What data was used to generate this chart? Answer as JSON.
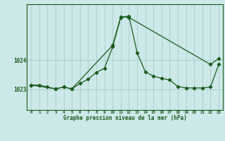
{
  "title": "Graphe pression niveau de la mer (hPa)",
  "background_color": "#cce8e8",
  "grid_color": "#aacccc",
  "line_color": "#1a5c1a",
  "x_labels": [
    "0",
    "1",
    "2",
    "3",
    "4",
    "5",
    "6",
    "7",
    "8",
    "9",
    "10",
    "11",
    "12",
    "13",
    "14",
    "15",
    "16",
    "17",
    "18",
    "19",
    "20",
    "21",
    "22",
    "23"
  ],
  "y_ticks": [
    1023,
    1024
  ],
  "ylim": [
    1022.3,
    1025.9
  ],
  "xlim": [
    -0.5,
    23.5
  ],
  "series1_x": [
    0,
    1,
    2,
    3,
    4,
    5,
    6,
    7,
    8,
    9,
    10,
    11,
    12,
    13,
    14,
    15,
    16,
    17,
    18,
    19,
    20,
    21,
    22,
    23
  ],
  "series1_y": [
    1023.15,
    1023.15,
    1023.08,
    1023.02,
    1023.08,
    1023.02,
    1023.2,
    1023.35,
    1023.58,
    1023.72,
    1024.45,
    1025.45,
    1025.5,
    1024.25,
    1023.6,
    1023.45,
    1023.38,
    1023.32,
    1023.1,
    1023.05,
    1023.05,
    1023.05,
    1023.08,
    1023.85
  ],
  "series2_x": [
    0,
    3,
    4,
    5,
    10,
    11,
    12,
    22,
    23
  ],
  "series2_y": [
    1023.15,
    1023.02,
    1023.08,
    1023.02,
    1024.5,
    1025.48,
    1025.45,
    1023.85,
    1024.05
  ]
}
